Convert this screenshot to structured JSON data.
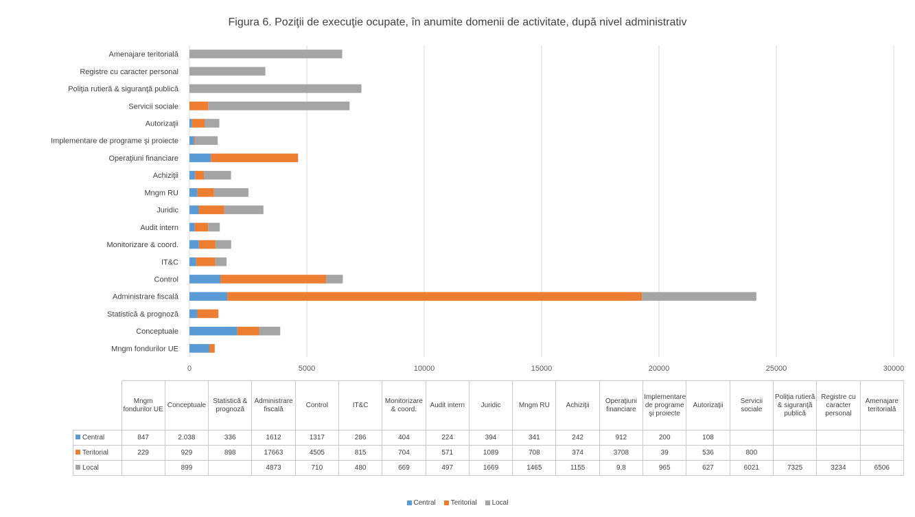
{
  "chart_data": {
    "type": "bar",
    "orientation": "horizontal",
    "stacked": true,
    "title": "Figura 6. Poziţii de execuţie ocupate, în anumite domenii de activitate, după nivel administrativ",
    "xlim": [
      0,
      30000
    ],
    "xticks": [
      "0",
      "5000",
      "10000",
      "15000",
      "20000",
      "25000",
      "30000"
    ],
    "grid": true,
    "legend_position": "bottom",
    "categories": [
      "Mngm fondurilor UE",
      "Conceptuale",
      "Statistică & prognoză",
      "Administrare fiscală",
      "Control",
      "IT&C",
      "Monitorizare & coord.",
      "Audit intern",
      "Juridic",
      "Mngm RU",
      "Achiziţii",
      "Operaţiuni financiare",
      "Implementare de programe şi proiecte",
      "Autorizaţii",
      "Servicii sociale",
      "Poliţia rutieră & siguranţă publică",
      "Registre cu caracter personal",
      "Amenajare teritorială"
    ],
    "table_headers": [
      "Mngm fondurilor UE",
      "Conceptuale",
      "Statistică & prognoză",
      "Administrare fiscală",
      "Control",
      "IT&C",
      "Monitorizare & coord.",
      "Audit intern",
      "Juridic",
      "Mngm RU",
      "Achiziţii",
      "Operaţiuni financiare",
      "Implementare de programe şi proiecte",
      "Autorizaţii",
      "Servicii sociale",
      "Poliţia rutieră & siguranţă publică",
      "Registre cu caracter personal",
      "Amenajare teritorială"
    ],
    "series": [
      {
        "name": "Central",
        "color": "#5b9bd5",
        "values": [
          847,
          2038,
          336,
          1612,
          1317,
          286,
          404,
          224,
          394,
          341,
          242,
          912,
          200,
          108,
          null,
          null,
          null,
          null
        ],
        "labels": [
          "847",
          "2.038",
          "336",
          "1612",
          "1317",
          "286",
          "404",
          "224",
          "394",
          "341",
          "242",
          "912",
          "200",
          "108",
          "",
          "",
          "",
          ""
        ]
      },
      {
        "name": "Teritorial",
        "color": "#ed7d31",
        "values": [
          229,
          929,
          898,
          17663,
          4505,
          815,
          704,
          571,
          1089,
          708,
          374,
          3708,
          39,
          536,
          800,
          null,
          null,
          null
        ],
        "labels": [
          "229",
          "929",
          "898",
          "17663",
          "4505",
          "815",
          "704",
          "571",
          "1089",
          "708",
          "374",
          "3708",
          "39",
          "536",
          "800",
          "",
          "",
          ""
        ]
      },
      {
        "name": "Local",
        "color": "#a5a5a5",
        "values": [
          null,
          899,
          null,
          4873,
          710,
          480,
          669,
          497,
          1669,
          1465,
          1155,
          9.8,
          965,
          627,
          6021,
          7325,
          3234,
          6506
        ],
        "labels": [
          "",
          "899",
          "",
          "4873",
          "710",
          "480",
          "669",
          "497",
          "1669",
          "1465",
          "1155",
          "9,8",
          "965",
          "627",
          "6021",
          "7325",
          "3234",
          "6506"
        ]
      }
    ]
  }
}
